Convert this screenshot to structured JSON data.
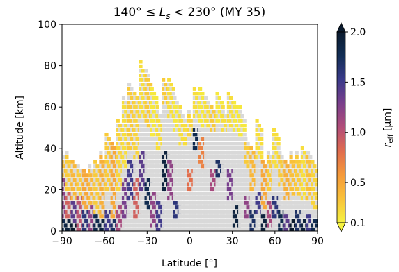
{
  "chart_data": {
    "type": "scatter",
    "title": "140° ≤ L_s < 230° (MY 35)",
    "title_parts": {
      "prefix": "140° ≤ ",
      "var_main": "L",
      "var_sub": "s",
      "suffix": " < 230° (MY 35)"
    },
    "xlabel": "Latitude [°]",
    "ylabel": "Altitude [km]",
    "xlim": [
      -90,
      90
    ],
    "ylim": [
      0,
      100
    ],
    "xticks": [
      -90,
      -60,
      -30,
      0,
      30,
      60,
      90
    ],
    "xtick_labels": [
      "−90",
      "−60",
      "−30",
      "0",
      "30",
      "60",
      "90"
    ],
    "yticks": [
      0,
      20,
      40,
      60,
      80,
      100
    ],
    "ytick_labels": [
      "0",
      "20",
      "40",
      "60",
      "80",
      "100"
    ],
    "colorbar": {
      "label_main": "r",
      "label_sub": "eff",
      "label_unit": " [μm]",
      "range": [
        0.1,
        2.0
      ],
      "ticks": [
        0.1,
        0.5,
        1.0,
        1.5,
        2.0
      ],
      "tick_labels": [
        "0.1",
        "0.5",
        "1.0",
        "1.5",
        "2.0"
      ],
      "extend": "both",
      "colormap_stops": [
        "#f5f240",
        "#f9c23a",
        "#f59a3a",
        "#e06c4e",
        "#b24d79",
        "#7a3f8c",
        "#3a3a8a",
        "#122e55",
        "#0b1b2e"
      ]
    },
    "no_value_color": "#d9d9d9",
    "columns": [
      {
        "lat": -89,
        "top": 40,
        "cases": [
          [
            0,
            40,
            0.35
          ],
          [
            0,
            25,
            1.2
          ],
          [
            0,
            6,
            1.8
          ]
        ]
      },
      {
        "lat": -85,
        "top": 38,
        "cases": [
          [
            2,
            38,
            0.3
          ],
          [
            0,
            20,
            0.9
          ],
          [
            0,
            5,
            1.9
          ]
        ]
      },
      {
        "lat": -81,
        "top": 34,
        "cases": [
          [
            0,
            34,
            0.4
          ],
          [
            0,
            15,
            1.4
          ],
          [
            0,
            4,
            2.0
          ]
        ]
      },
      {
        "lat": -77,
        "top": 33,
        "cases": [
          [
            5,
            33,
            0.3
          ],
          [
            0,
            18,
            1.0
          ]
        ]
      },
      {
        "lat": -73,
        "top": 30,
        "cases": [
          [
            0,
            30,
            0.5
          ],
          [
            0,
            10,
            1.6
          ]
        ]
      },
      {
        "lat": -69,
        "top": 32,
        "cases": [
          [
            3,
            32,
            0.4
          ],
          [
            0,
            12,
            1.2
          ]
        ]
      },
      {
        "lat": -65,
        "top": 35,
        "cases": [
          [
            0,
            35,
            0.3
          ],
          [
            0,
            8,
            1.8
          ]
        ]
      },
      {
        "lat": -61,
        "top": 38,
        "cases": [
          [
            2,
            38,
            0.45
          ],
          [
            0,
            5,
            1.9
          ]
        ]
      },
      {
        "lat": -57,
        "top": 48,
        "cases": [
          [
            20,
            48,
            0.3
          ],
          [
            0,
            10,
            1.5
          ]
        ]
      },
      {
        "lat": -53,
        "top": 43,
        "cases": [
          [
            2,
            43,
            0.5
          ],
          [
            0,
            6,
            1.7
          ]
        ]
      },
      {
        "lat": -49,
        "top": 55,
        "cases": [
          [
            20,
            55,
            0.25
          ],
          [
            0,
            12,
            1.1
          ]
        ]
      },
      {
        "lat": -45,
        "top": 65,
        "cases": [
          [
            30,
            65,
            0.2
          ],
          [
            5,
            25,
            1.3
          ]
        ]
      },
      {
        "lat": -41,
        "top": 72,
        "cases": [
          [
            40,
            72,
            0.3
          ],
          [
            15,
            35,
            1.5
          ]
        ]
      },
      {
        "lat": -37,
        "top": 68,
        "cases": [
          [
            35,
            68,
            0.25
          ],
          [
            5,
            25,
            0.9
          ]
        ]
      },
      {
        "lat": -33,
        "top": 82,
        "cases": [
          [
            55,
            82,
            0.2
          ],
          [
            20,
            40,
            1.4
          ]
        ]
      },
      {
        "lat": -29,
        "top": 78,
        "cases": [
          [
            50,
            78,
            0.3
          ],
          [
            10,
            25,
            1.8
          ]
        ]
      },
      {
        "lat": -25,
        "top": 70,
        "cases": [
          [
            45,
            70,
            0.15
          ],
          [
            2,
            20,
            1.2
          ]
        ]
      },
      {
        "lat": -21,
        "top": 60,
        "cases": [
          [
            40,
            60,
            0.2
          ],
          [
            0,
            15,
            1.5
          ]
        ]
      },
      {
        "lat": -17,
        "top": 75,
        "cases": [
          [
            60,
            75,
            0.3
          ],
          [
            20,
            40,
            1.9
          ]
        ]
      },
      {
        "lat": -13,
        "top": 75,
        "cases": [
          [
            55,
            75,
            0.2
          ],
          [
            15,
            35,
            1.2
          ]
        ]
      },
      {
        "lat": -9,
        "top": 65,
        "cases": [
          [
            48,
            65,
            0.15
          ],
          [
            5,
            15,
            1.6
          ]
        ]
      },
      {
        "lat": -5,
        "top": 60,
        "cases": [
          [
            42,
            60,
            0.2
          ]
        ]
      },
      {
        "lat": 1,
        "top": 58,
        "cases": [
          [
            46,
            58,
            0.25
          ],
          [
            20,
            30,
            0.8
          ]
        ]
      },
      {
        "lat": 5,
        "top": 70,
        "cases": [
          [
            55,
            70,
            0.2
          ],
          [
            38,
            50,
            1.8
          ]
        ]
      },
      {
        "lat": 9,
        "top": 70,
        "cases": [
          [
            50,
            70,
            0.15
          ],
          [
            30,
            45,
            0.7
          ]
        ]
      },
      {
        "lat": 13,
        "top": 65,
        "cases": [
          [
            50,
            65,
            0.2
          ]
        ]
      },
      {
        "lat": 17,
        "top": 62,
        "cases": [
          [
            48,
            62,
            0.3
          ],
          [
            20,
            30,
            1.1
          ]
        ]
      },
      {
        "lat": 21,
        "top": 68,
        "cases": [
          [
            52,
            68,
            0.15
          ],
          [
            25,
            35,
            1.7
          ]
        ]
      },
      {
        "lat": 25,
        "top": 60,
        "cases": [
          [
            48,
            60,
            0.2
          ]
        ]
      },
      {
        "lat": 29,
        "top": 68,
        "cases": [
          [
            50,
            68,
            0.2
          ],
          [
            15,
            30,
            1.3
          ]
        ]
      },
      {
        "lat": 33,
        "top": 63,
        "cases": [
          [
            48,
            63,
            0.15
          ],
          [
            2,
            12,
            1.9
          ]
        ]
      },
      {
        "lat": 37,
        "top": 60,
        "cases": [
          [
            45,
            60,
            0.15
          ]
        ]
      },
      {
        "lat": 41,
        "top": 45,
        "cases": [
          [
            30,
            45,
            0.3
          ],
          [
            5,
            18,
            1.2
          ]
        ]
      },
      {
        "lat": 45,
        "top": 42,
        "cases": [
          [
            20,
            42,
            0.4
          ],
          [
            0,
            10,
            1.7
          ]
        ]
      },
      {
        "lat": 49,
        "top": 55,
        "cases": [
          [
            35,
            55,
            0.2
          ],
          [
            8,
            20,
            1.5
          ]
        ]
      },
      {
        "lat": 53,
        "top": 35,
        "cases": [
          [
            10,
            35,
            0.5
          ],
          [
            0,
            8,
            1.9
          ]
        ]
      },
      {
        "lat": 57,
        "top": 40,
        "cases": [
          [
            20,
            40,
            0.3
          ],
          [
            2,
            15,
            1.1
          ]
        ]
      },
      {
        "lat": 61,
        "top": 50,
        "cases": [
          [
            30,
            50,
            0.2
          ],
          [
            5,
            18,
            1.6
          ]
        ]
      },
      {
        "lat": 65,
        "top": 40,
        "cases": [
          [
            22,
            40,
            0.3
          ],
          [
            0,
            10,
            1.8
          ]
        ]
      },
      {
        "lat": 69,
        "top": 35,
        "cases": [
          [
            15,
            35,
            0.45
          ],
          [
            0,
            8,
            1.4
          ]
        ]
      },
      {
        "lat": 73,
        "top": 38,
        "cases": [
          [
            18,
            38,
            0.35
          ],
          [
            0,
            6,
            2.0
          ]
        ]
      },
      {
        "lat": 77,
        "top": 38,
        "cases": [
          [
            16,
            38,
            0.3
          ],
          [
            0,
            10,
            1.7
          ]
        ]
      },
      {
        "lat": 81,
        "top": 42,
        "cases": [
          [
            14,
            42,
            0.2
          ],
          [
            0,
            6,
            1.9
          ]
        ]
      },
      {
        "lat": 85,
        "top": 40,
        "cases": [
          [
            15,
            40,
            0.35
          ],
          [
            0,
            8,
            1.5
          ]
        ]
      },
      {
        "lat": 88,
        "top": 35,
        "cases": [
          [
            10,
            35,
            0.25
          ],
          [
            0,
            5,
            1.8
          ]
        ]
      }
    ]
  }
}
